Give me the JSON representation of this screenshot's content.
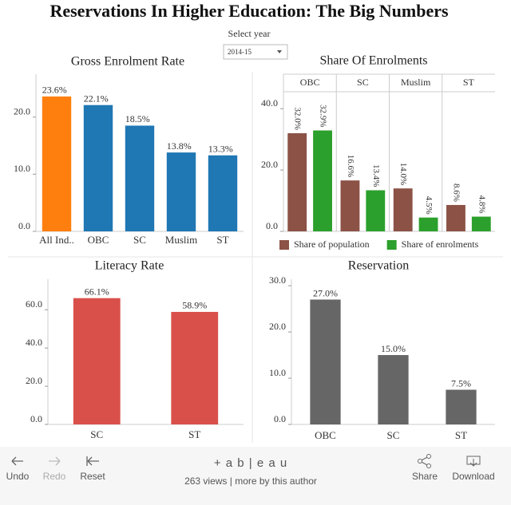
{
  "header": {
    "title": "Reservations In Higher Education: The Big Numbers",
    "filter_label": "Select year",
    "filter_value": "2014-15"
  },
  "chart_data": [
    {
      "type": "bar",
      "title": "Gross Enrolment Rate",
      "categories": [
        "All Ind..",
        "OBC",
        "SC",
        "Muslim",
        "ST"
      ],
      "values": [
        23.6,
        22.1,
        18.5,
        13.8,
        13.3
      ],
      "value_labels": [
        "23.6%",
        "22.1%",
        "18.5%",
        "13.8%",
        "13.3%"
      ],
      "colors": [
        "#ff7f0e",
        "#1f77b4",
        "#1f77b4",
        "#1f77b4",
        "#1f77b4"
      ],
      "ylim": [
        0,
        27.5
      ],
      "yticks": [
        {
          "value": 0,
          "label": "0.0"
        },
        {
          "value": 10,
          "label": "10.0"
        },
        {
          "value": 20,
          "label": "20.0"
        }
      ]
    },
    {
      "type": "bar",
      "title": "Share Of Enrolments",
      "categories": [
        "OBC",
        "SC",
        "Muslim",
        "ST"
      ],
      "series": [
        {
          "name": "Share of population",
          "color": "#8c5246",
          "values": [
            32.0,
            16.6,
            14.0,
            8.6
          ],
          "value_labels": [
            "32.0%",
            "16.6%",
            "14.0%",
            "8.6%"
          ]
        },
        {
          "name": "Share of enrolments",
          "color": "#2ca02c",
          "values": [
            32.9,
            13.4,
            4.5,
            4.8
          ],
          "value_labels": [
            "32.9%",
            "13.4%",
            "4.5%",
            "4.8%"
          ]
        }
      ],
      "ylim": [
        0,
        45
      ],
      "yticks": [
        {
          "value": 0,
          "label": "0.0"
        },
        {
          "value": 20,
          "label": "20.0"
        },
        {
          "value": 40,
          "label": "40.0"
        }
      ],
      "legend": "bottom"
    },
    {
      "type": "bar",
      "title": "Literacy Rate",
      "categories": [
        "SC",
        "ST"
      ],
      "values": [
        66.1,
        58.9
      ],
      "value_labels": [
        "66.1%",
        "58.9%"
      ],
      "color": "#d9504a",
      "ylim": [
        0,
        76
      ],
      "yticks": [
        {
          "value": 0,
          "label": "0.0"
        },
        {
          "value": 20,
          "label": "20.0"
        },
        {
          "value": 40,
          "label": "40.0"
        },
        {
          "value": 60,
          "label": "60.0"
        }
      ]
    },
    {
      "type": "bar",
      "title": "Reservation",
      "categories": [
        "OBC",
        "SC",
        "ST"
      ],
      "values": [
        27.0,
        15.0,
        7.5
      ],
      "value_labels": [
        "27.0%",
        "15.0%",
        "7.5%"
      ],
      "color": "#666666",
      "ylim": [
        0,
        31.4
      ],
      "yticks": [
        {
          "value": 0,
          "label": "0.0"
        },
        {
          "value": 10,
          "label": "10.0"
        },
        {
          "value": 20,
          "label": "20.0"
        },
        {
          "value": 30,
          "label": "30.0"
        }
      ]
    }
  ],
  "toolbar": {
    "undo": "Undo",
    "redo": "Redo",
    "reset": "Reset",
    "logo": "+ a b | e a u",
    "views": "263 views | more by this author",
    "share": "Share",
    "download": "Download"
  }
}
